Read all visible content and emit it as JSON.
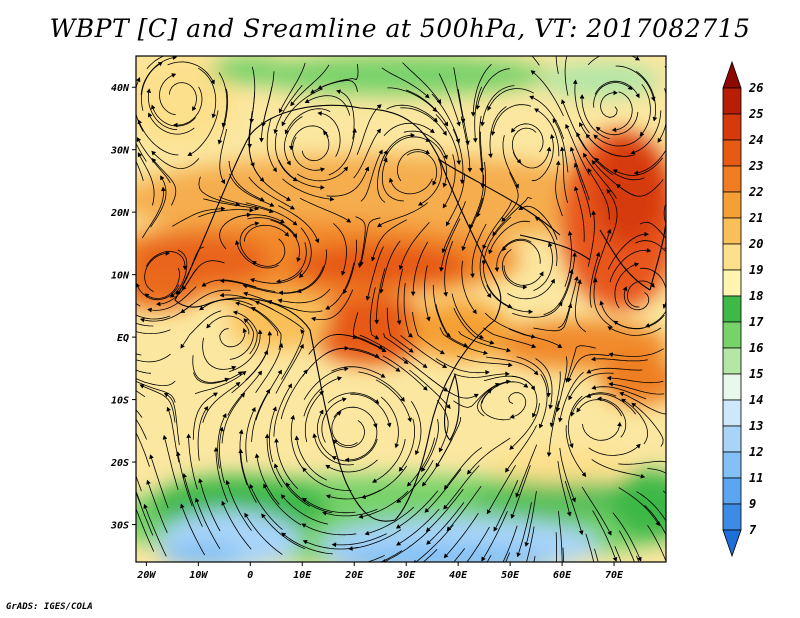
{
  "title": "WBPT [C] and Sreamline at 500hPa, VT: 2017082715",
  "credit": "GrADS: IGES/COLA",
  "map": {
    "lon_range": [
      -22,
      80
    ],
    "lat_range": [
      -36,
      45
    ],
    "lat_ticks": [
      "40N",
      "30N",
      "20N",
      "10N",
      "EQ",
      "10S",
      "20S",
      "30S"
    ],
    "lat_tick_values": [
      40,
      30,
      20,
      10,
      0,
      -10,
      -20,
      -30
    ],
    "lon_ticks": [
      "20W",
      "10W",
      "0",
      "10E",
      "20E",
      "30E",
      "40E",
      "50E",
      "60E",
      "70E"
    ],
    "lon_tick_values": [
      -20,
      -10,
      0,
      10,
      20,
      30,
      40,
      50,
      60,
      70
    ]
  },
  "colorbar": {
    "labels": [
      "7",
      "9",
      "11",
      "12",
      "13",
      "14",
      "15",
      "16",
      "17",
      "18",
      "19",
      "20",
      "21",
      "22",
      "23",
      "24",
      "25",
      "26"
    ],
    "colors": [
      "#1e6fd8",
      "#3c8ce6",
      "#5aa6f0",
      "#82c0f5",
      "#a8d4f8",
      "#cde8fb",
      "#e8f8ec",
      "#b4e6a6",
      "#78d26a",
      "#3eb846",
      "#fff4b0",
      "#fde08c",
      "#f9c05a",
      "#f5a035",
      "#f07d22",
      "#e65a14",
      "#d63a0c",
      "#b81e06",
      "#8e0a00"
    ]
  }
}
